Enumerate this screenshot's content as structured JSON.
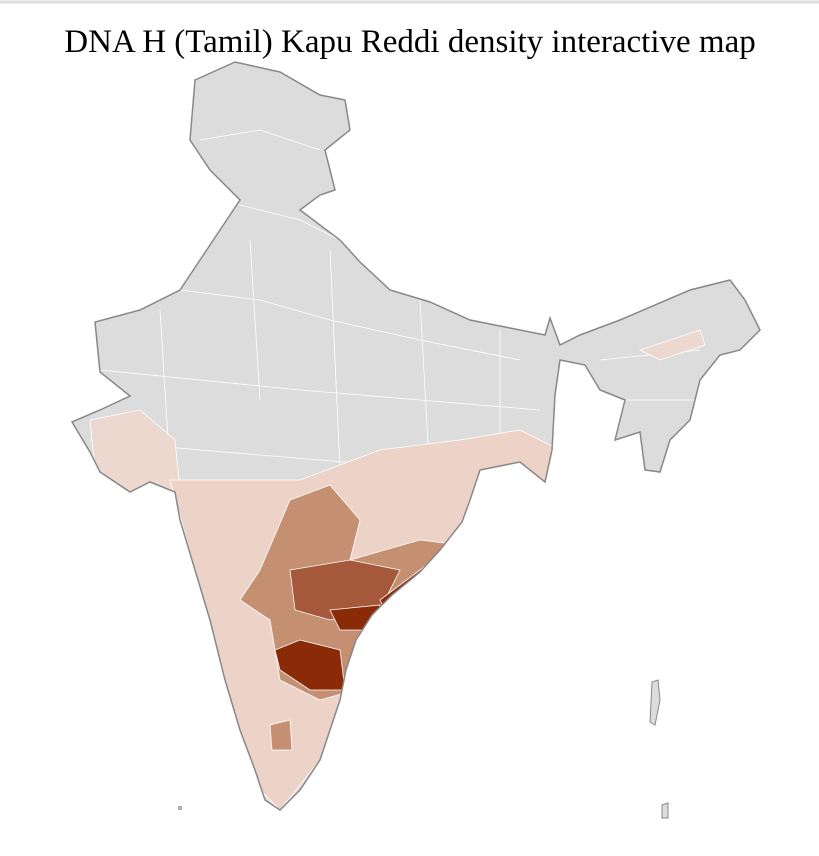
{
  "title": "DNA H (Tamil) Kapu Reddi density interactive map"
}
